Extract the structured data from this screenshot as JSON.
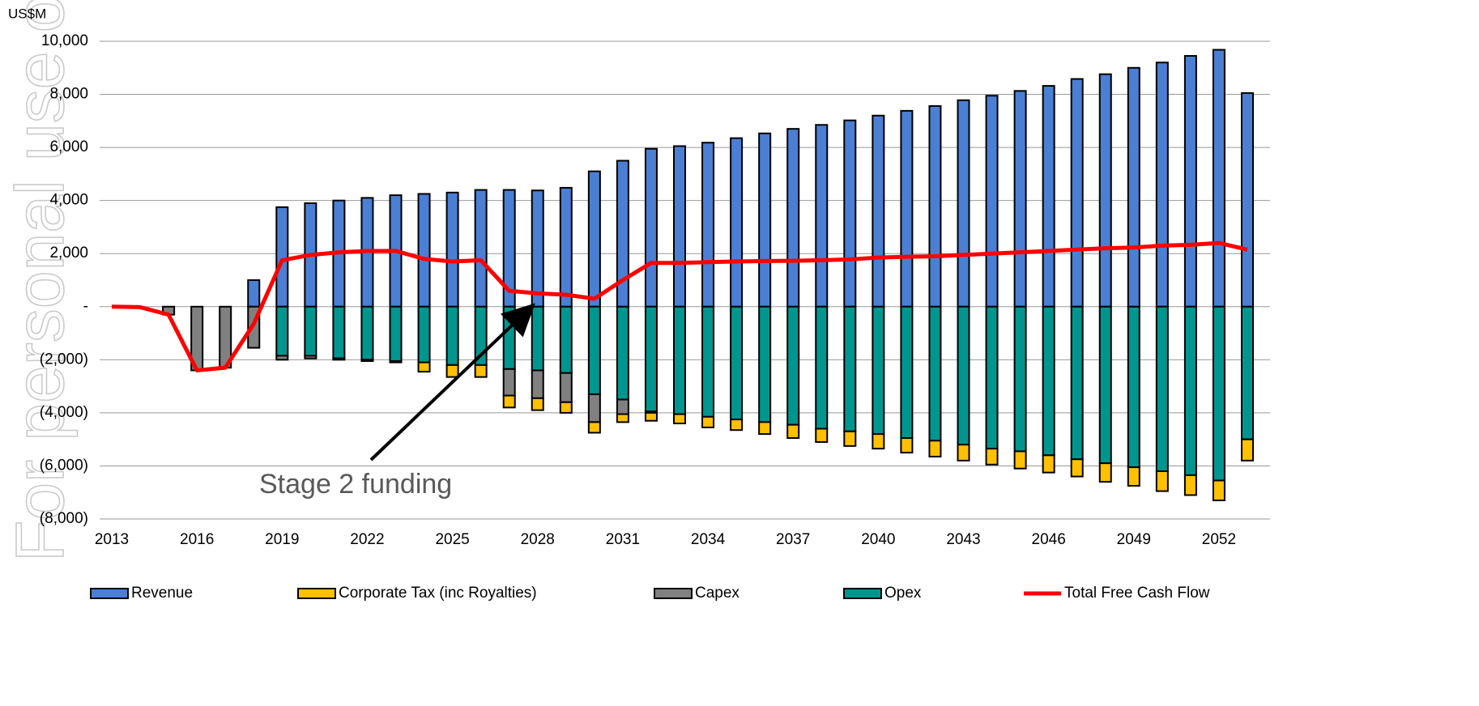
{
  "chart_data": {
    "type": "bar",
    "stacked": true,
    "y_label": "US$M",
    "watermark": "For personal use only",
    "annotation": "Stage 2 funding",
    "categories": [
      "2013",
      null,
      null,
      "2016",
      null,
      null,
      "2019",
      null,
      null,
      "2022",
      null,
      null,
      "2025",
      null,
      null,
      "2028",
      null,
      null,
      "2031",
      null,
      null,
      "2034",
      null,
      null,
      "2037",
      null,
      null,
      "2040",
      null,
      null,
      "2043",
      null,
      null,
      "2046",
      null,
      null,
      "2049",
      null,
      null,
      "2052",
      null
    ],
    "ylim": [
      -8000,
      10000
    ],
    "yticks": [
      {
        "value": -8000,
        "label": "(8,000)"
      },
      {
        "value": -6000,
        "label": "(6,000)"
      },
      {
        "value": -4000,
        "label": "(4,000)"
      },
      {
        "value": -2000,
        "label": "(2,000)"
      },
      {
        "value": 0,
        "label": "-"
      },
      {
        "value": 2000,
        "label": "2,000"
      },
      {
        "value": 4000,
        "label": "4,000"
      },
      {
        "value": 6000,
        "label": "6,000"
      },
      {
        "value": 8000,
        "label": "8,000"
      },
      {
        "value": 10000,
        "label": "10,000"
      }
    ],
    "grid": true,
    "legend": "bottom",
    "series": [
      {
        "name": "Revenue",
        "color": "#4a7fd4",
        "values": [
          0,
          0,
          0,
          0,
          0,
          1000,
          3750,
          3900,
          4000,
          4100,
          4200,
          4250,
          4300,
          4400,
          4400,
          4380,
          4480,
          5100,
          5500,
          5950,
          6050,
          6180,
          6350,
          6530,
          6700,
          6850,
          7020,
          7200,
          7380,
          7560,
          7780,
          7950,
          8130,
          8320,
          8580,
          8760,
          9000,
          9200,
          9450,
          9680,
          8050
        ]
      },
      {
        "name": "Corporate Tax (inc Royalties)",
        "color": "#ffc000",
        "values": [
          0,
          0,
          0,
          0,
          0,
          0,
          0,
          0,
          0,
          0,
          0,
          -350,
          -450,
          -450,
          -450,
          -450,
          -400,
          -400,
          -300,
          -300,
          -350,
          -400,
          -400,
          -450,
          -500,
          -500,
          -550,
          -550,
          -550,
          -600,
          -600,
          -600,
          -650,
          -650,
          -650,
          -700,
          -700,
          -750,
          -750,
          -750,
          -800
        ]
      },
      {
        "name": "Capex",
        "color": "#808080",
        "values": [
          0,
          0,
          -300,
          -2400,
          -2300,
          -1550,
          -150,
          -100,
          -50,
          -50,
          -50,
          0,
          0,
          0,
          -1000,
          -1050,
          -1100,
          -1050,
          -550,
          -50,
          0,
          0,
          0,
          0,
          0,
          0,
          0,
          0,
          0,
          0,
          0,
          0,
          0,
          0,
          0,
          0,
          0,
          0,
          0,
          0,
          0
        ]
      },
      {
        "name": "Opex",
        "color": "#00968f",
        "values": [
          0,
          0,
          0,
          0,
          0,
          0,
          -1850,
          -1850,
          -1950,
          -2000,
          -2050,
          -2100,
          -2200,
          -2200,
          -2350,
          -2400,
          -2500,
          -3300,
          -3500,
          -3950,
          -4050,
          -4150,
          -4250,
          -4350,
          -4450,
          -4600,
          -4700,
          -4800,
          -4950,
          -5050,
          -5200,
          -5350,
          -5450,
          -5600,
          -5750,
          -5900,
          -6050,
          -6200,
          -6350,
          -6550,
          -5000
        ]
      },
      {
        "name": "Total Free Cash Flow",
        "type": "line",
        "color": "#ff0000",
        "values": [
          0,
          -20,
          -300,
          -2400,
          -2300,
          -650,
          1750,
          1950,
          2050,
          2100,
          2100,
          1800,
          1700,
          1750,
          600,
          500,
          450,
          300,
          1000,
          1650,
          1650,
          1680,
          1700,
          1720,
          1730,
          1750,
          1780,
          1850,
          1880,
          1900,
          1950,
          2000,
          2050,
          2100,
          2150,
          2200,
          2230,
          2300,
          2330,
          2400,
          2150
        ]
      }
    ]
  }
}
